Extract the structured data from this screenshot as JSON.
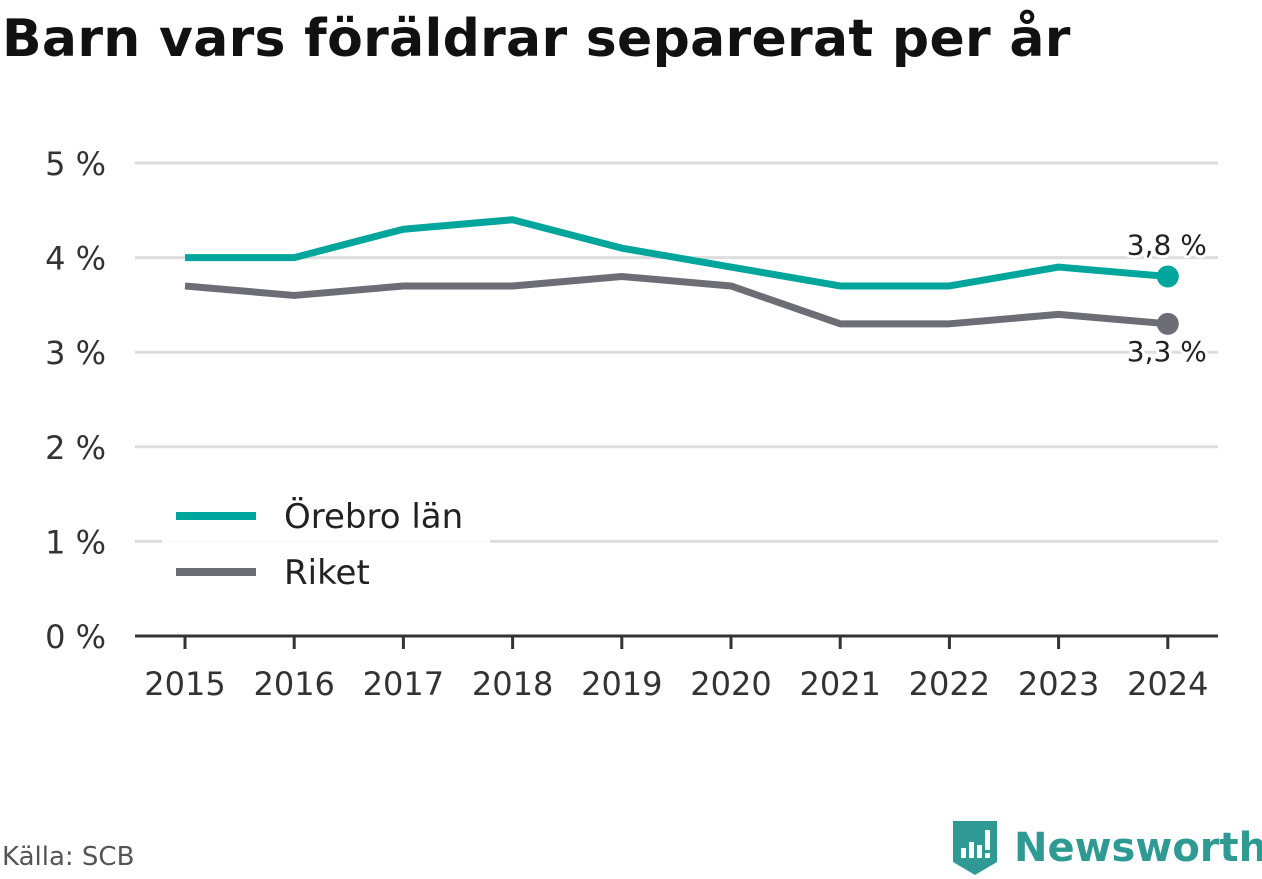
{
  "title": "Barn vars föräldrar separerat per år",
  "source": "Källa: SCB",
  "brand": {
    "name": "Newsworthy",
    "logo_icon": "newsworthy-bar-chart-logo",
    "color": "#2f9a93"
  },
  "chart_data": {
    "type": "line",
    "title": "Barn vars föräldrar separerat per år",
    "x": [
      "2015",
      "2016",
      "2017",
      "2018",
      "2019",
      "2020",
      "2021",
      "2022",
      "2023",
      "2024"
    ],
    "series": [
      {
        "name": "Örebro län",
        "color": "#00a59b",
        "values": [
          4.0,
          4.0,
          4.3,
          4.4,
          4.1,
          3.9,
          3.7,
          3.7,
          3.9,
          3.8
        ],
        "end_label": "3,8 %"
      },
      {
        "name": "Riket",
        "color": "#6d6d75",
        "values": [
          3.7,
          3.6,
          3.7,
          3.7,
          3.8,
          3.7,
          3.3,
          3.3,
          3.4,
          3.3
        ],
        "end_label": "3,3 %"
      }
    ],
    "ylim": [
      0,
      5
    ],
    "y_ticks": [
      0,
      1,
      2,
      3,
      4,
      5
    ],
    "y_tick_labels": [
      "0 %",
      "1 %",
      "2 %",
      "3 %",
      "4 %",
      "5 %"
    ],
    "grid": true,
    "legend_position": "bottom-left",
    "xlabel": "",
    "ylabel": ""
  }
}
